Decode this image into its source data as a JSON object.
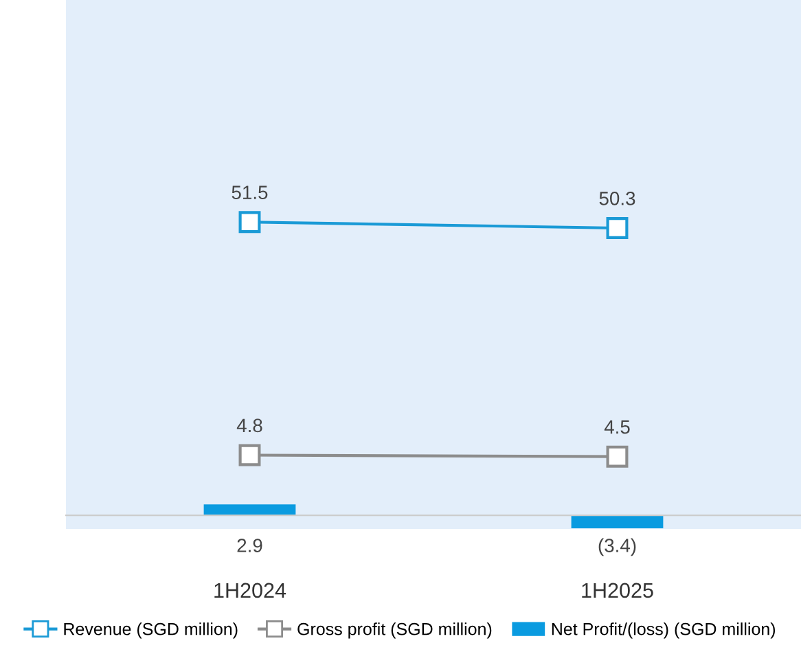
{
  "chart_data": {
    "type": "line",
    "categories": [
      "1H2024",
      "1H2025"
    ],
    "series": [
      {
        "name": "Revenue (SGD million)",
        "color": "#1a9ad6",
        "values": [
          51.5,
          50.3
        ],
        "value_labels": [
          "51.5",
          "50.3"
        ],
        "axis": "y"
      },
      {
        "name": "Gross profit (SGD million)",
        "color": "#8c8c8c",
        "values": [
          4.8,
          4.5
        ],
        "value_labels": [
          "4.8",
          "4.5"
        ],
        "axis": "y"
      },
      {
        "name": "Net Profit/(loss) (SGD million)",
        "type": "bar",
        "color": "#0a9be0",
        "values": [
          2.9,
          -3.4
        ],
        "value_labels": [
          "2.9",
          "(3.4)"
        ],
        "axis": "y2"
      }
    ],
    "ylim": [
      -10,
      96
    ],
    "y2lim": [
      -3.6,
      136
    ],
    "marker": "square",
    "line_style": "solid",
    "legend": "bottom",
    "tick_labels": "x",
    "grid": false
  }
}
